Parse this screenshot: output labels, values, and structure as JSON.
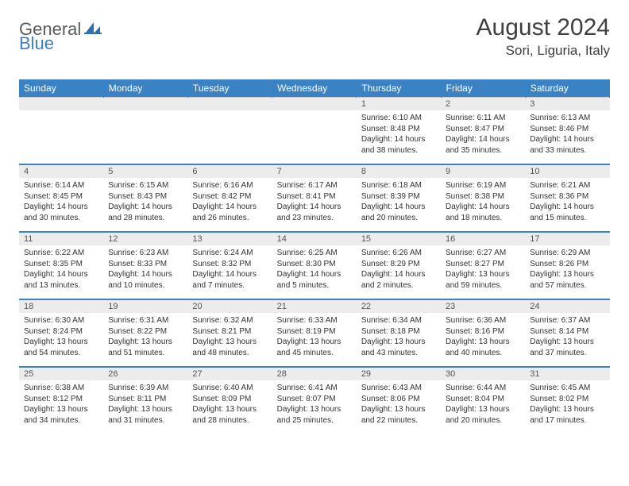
{
  "logo": {
    "word1": "General",
    "word2": "Blue"
  },
  "title": "August 2024",
  "location": "Sori, Liguria, Italy",
  "colors": {
    "header_bg": "#3b82c4",
    "header_text": "#ffffff",
    "daynum_bg": "#ececec",
    "border": "#c9c9c9",
    "logo_gray": "#5a5a5a",
    "logo_blue": "#3b7fc4"
  },
  "weekdays": [
    "Sunday",
    "Monday",
    "Tuesday",
    "Wednesday",
    "Thursday",
    "Friday",
    "Saturday"
  ],
  "weeks": [
    {
      "nums": [
        "",
        "",
        "",
        "",
        "1",
        "2",
        "3"
      ],
      "cells": [
        null,
        null,
        null,
        null,
        {
          "sunrise": "Sunrise: 6:10 AM",
          "sunset": "Sunset: 8:48 PM",
          "daylight": "Daylight: 14 hours and 38 minutes."
        },
        {
          "sunrise": "Sunrise: 6:11 AM",
          "sunset": "Sunset: 8:47 PM",
          "daylight": "Daylight: 14 hours and 35 minutes."
        },
        {
          "sunrise": "Sunrise: 6:13 AM",
          "sunset": "Sunset: 8:46 PM",
          "daylight": "Daylight: 14 hours and 33 minutes."
        }
      ]
    },
    {
      "nums": [
        "4",
        "5",
        "6",
        "7",
        "8",
        "9",
        "10"
      ],
      "cells": [
        {
          "sunrise": "Sunrise: 6:14 AM",
          "sunset": "Sunset: 8:45 PM",
          "daylight": "Daylight: 14 hours and 30 minutes."
        },
        {
          "sunrise": "Sunrise: 6:15 AM",
          "sunset": "Sunset: 8:43 PM",
          "daylight": "Daylight: 14 hours and 28 minutes."
        },
        {
          "sunrise": "Sunrise: 6:16 AM",
          "sunset": "Sunset: 8:42 PM",
          "daylight": "Daylight: 14 hours and 26 minutes."
        },
        {
          "sunrise": "Sunrise: 6:17 AM",
          "sunset": "Sunset: 8:41 PM",
          "daylight": "Daylight: 14 hours and 23 minutes."
        },
        {
          "sunrise": "Sunrise: 6:18 AM",
          "sunset": "Sunset: 8:39 PM",
          "daylight": "Daylight: 14 hours and 20 minutes."
        },
        {
          "sunrise": "Sunrise: 6:19 AM",
          "sunset": "Sunset: 8:38 PM",
          "daylight": "Daylight: 14 hours and 18 minutes."
        },
        {
          "sunrise": "Sunrise: 6:21 AM",
          "sunset": "Sunset: 8:36 PM",
          "daylight": "Daylight: 14 hours and 15 minutes."
        }
      ]
    },
    {
      "nums": [
        "11",
        "12",
        "13",
        "14",
        "15",
        "16",
        "17"
      ],
      "cells": [
        {
          "sunrise": "Sunrise: 6:22 AM",
          "sunset": "Sunset: 8:35 PM",
          "daylight": "Daylight: 14 hours and 13 minutes."
        },
        {
          "sunrise": "Sunrise: 6:23 AM",
          "sunset": "Sunset: 8:33 PM",
          "daylight": "Daylight: 14 hours and 10 minutes."
        },
        {
          "sunrise": "Sunrise: 6:24 AM",
          "sunset": "Sunset: 8:32 PM",
          "daylight": "Daylight: 14 hours and 7 minutes."
        },
        {
          "sunrise": "Sunrise: 6:25 AM",
          "sunset": "Sunset: 8:30 PM",
          "daylight": "Daylight: 14 hours and 5 minutes."
        },
        {
          "sunrise": "Sunrise: 6:26 AM",
          "sunset": "Sunset: 8:29 PM",
          "daylight": "Daylight: 14 hours and 2 minutes."
        },
        {
          "sunrise": "Sunrise: 6:27 AM",
          "sunset": "Sunset: 8:27 PM",
          "daylight": "Daylight: 13 hours and 59 minutes."
        },
        {
          "sunrise": "Sunrise: 6:29 AM",
          "sunset": "Sunset: 8:26 PM",
          "daylight": "Daylight: 13 hours and 57 minutes."
        }
      ]
    },
    {
      "nums": [
        "18",
        "19",
        "20",
        "21",
        "22",
        "23",
        "24"
      ],
      "cells": [
        {
          "sunrise": "Sunrise: 6:30 AM",
          "sunset": "Sunset: 8:24 PM",
          "daylight": "Daylight: 13 hours and 54 minutes."
        },
        {
          "sunrise": "Sunrise: 6:31 AM",
          "sunset": "Sunset: 8:22 PM",
          "daylight": "Daylight: 13 hours and 51 minutes."
        },
        {
          "sunrise": "Sunrise: 6:32 AM",
          "sunset": "Sunset: 8:21 PM",
          "daylight": "Daylight: 13 hours and 48 minutes."
        },
        {
          "sunrise": "Sunrise: 6:33 AM",
          "sunset": "Sunset: 8:19 PM",
          "daylight": "Daylight: 13 hours and 45 minutes."
        },
        {
          "sunrise": "Sunrise: 6:34 AM",
          "sunset": "Sunset: 8:18 PM",
          "daylight": "Daylight: 13 hours and 43 minutes."
        },
        {
          "sunrise": "Sunrise: 6:36 AM",
          "sunset": "Sunset: 8:16 PM",
          "daylight": "Daylight: 13 hours and 40 minutes."
        },
        {
          "sunrise": "Sunrise: 6:37 AM",
          "sunset": "Sunset: 8:14 PM",
          "daylight": "Daylight: 13 hours and 37 minutes."
        }
      ]
    },
    {
      "nums": [
        "25",
        "26",
        "27",
        "28",
        "29",
        "30",
        "31"
      ],
      "cells": [
        {
          "sunrise": "Sunrise: 6:38 AM",
          "sunset": "Sunset: 8:12 PM",
          "daylight": "Daylight: 13 hours and 34 minutes."
        },
        {
          "sunrise": "Sunrise: 6:39 AM",
          "sunset": "Sunset: 8:11 PM",
          "daylight": "Daylight: 13 hours and 31 minutes."
        },
        {
          "sunrise": "Sunrise: 6:40 AM",
          "sunset": "Sunset: 8:09 PM",
          "daylight": "Daylight: 13 hours and 28 minutes."
        },
        {
          "sunrise": "Sunrise: 6:41 AM",
          "sunset": "Sunset: 8:07 PM",
          "daylight": "Daylight: 13 hours and 25 minutes."
        },
        {
          "sunrise": "Sunrise: 6:43 AM",
          "sunset": "Sunset: 8:06 PM",
          "daylight": "Daylight: 13 hours and 22 minutes."
        },
        {
          "sunrise": "Sunrise: 6:44 AM",
          "sunset": "Sunset: 8:04 PM",
          "daylight": "Daylight: 13 hours and 20 minutes."
        },
        {
          "sunrise": "Sunrise: 6:45 AM",
          "sunset": "Sunset: 8:02 PM",
          "daylight": "Daylight: 13 hours and 17 minutes."
        }
      ]
    }
  ]
}
